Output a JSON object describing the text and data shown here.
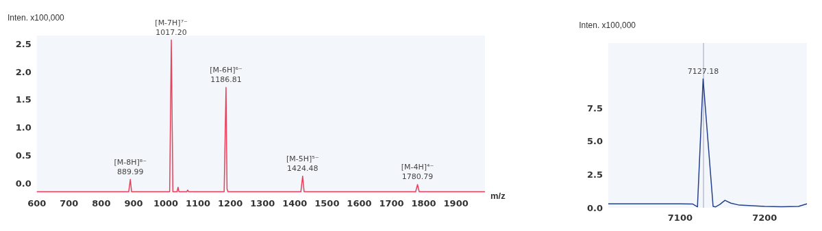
{
  "chart_data": [
    {
      "type": "line",
      "ylabel": "Inten. x100,000",
      "xlabel": "m/z",
      "series": [
        {
          "color": "#e8405a",
          "x": [
            600,
            850,
            885,
            889.99,
            894,
            1012,
            1017.2,
            1022,
            1035,
            1038,
            1041,
            1065,
            1068,
            1071,
            1181,
            1186.81,
            1190,
            1193,
            1419,
            1424.48,
            1429,
            1775,
            1780.79,
            1786,
            1990
          ],
          "values": [
            -0.15,
            -0.15,
            -0.15,
            0.07,
            -0.15,
            -0.15,
            2.57,
            -0.15,
            -0.15,
            -0.07,
            -0.15,
            -0.15,
            -0.12,
            -0.15,
            -0.15,
            1.72,
            -0.1,
            -0.15,
            -0.15,
            0.13,
            -0.15,
            -0.15,
            -0.02,
            -0.15,
            -0.15
          ]
        }
      ],
      "xlim": [
        600,
        1990
      ],
      "xticks": [
        600,
        700,
        800,
        900,
        1000,
        1100,
        1200,
        1300,
        1400,
        1500,
        1600,
        1700,
        1800,
        1900
      ],
      "ylim": [
        -0.18,
        2.65
      ],
      "yticks": [
        {
          "value": 0,
          "label": "0.0"
        },
        0.5,
        {
          "value": 1,
          "label": "1.0"
        },
        1.5,
        {
          "value": 2,
          "label": "2.0"
        },
        2.5
      ],
      "annotations": [
        {
          "text": "[M-8H]⁸⁻\n889.99",
          "x": 889.99,
          "y": 0.07
        },
        {
          "text": "[M-7H]⁷⁻\n1017.20",
          "x": 1017.2,
          "y": 2.57
        },
        {
          "text": "[M-6H]⁶⁻\n1186.81",
          "x": 1186.81,
          "y": 1.72
        },
        {
          "text": "[M-5H]⁵⁻\n1424.48",
          "x": 1424.48,
          "y": 0.13
        },
        {
          "text": "[M-4H]⁴⁻\n1780.79",
          "x": 1780.79,
          "y": -0.02
        }
      ],
      "grid": false,
      "marker": "none",
      "line_style": "solid"
    },
    {
      "type": "line",
      "ylabel": "Inten. x100,000",
      "series": [
        {
          "color": "#243f8c",
          "x": [
            7015,
            7060,
            7100,
            7115,
            7120.5,
            7127.18,
            7139,
            7142,
            7147,
            7153,
            7160,
            7170,
            7185,
            7200,
            7220,
            7240,
            7250
          ],
          "values": [
            0.3,
            0.3,
            0.3,
            0.28,
            0.07,
            9.7,
            0.1,
            0.07,
            0.25,
            0.56,
            0.35,
            0.2,
            0.15,
            0.1,
            0.08,
            0.1,
            0.3
          ]
        }
      ],
      "xlim": [
        7015,
        7250
      ],
      "xticks": [
        7100,
        7200
      ],
      "ylim": [
        0,
        12.4
      ],
      "yticks": [
        {
          "value": 0,
          "label": "0.0"
        },
        2.5,
        {
          "value": 5,
          "label": "5.0"
        },
        7.5
      ],
      "ref_lines": [
        {
          "axis": "x",
          "value": 7127.18,
          "color": "#c8ccd8"
        }
      ],
      "annotations": [
        {
          "text": "7127.18",
          "x": 7127.18,
          "y": 9.7
        }
      ],
      "grid": false,
      "marker": "none",
      "line_style": "solid"
    }
  ]
}
